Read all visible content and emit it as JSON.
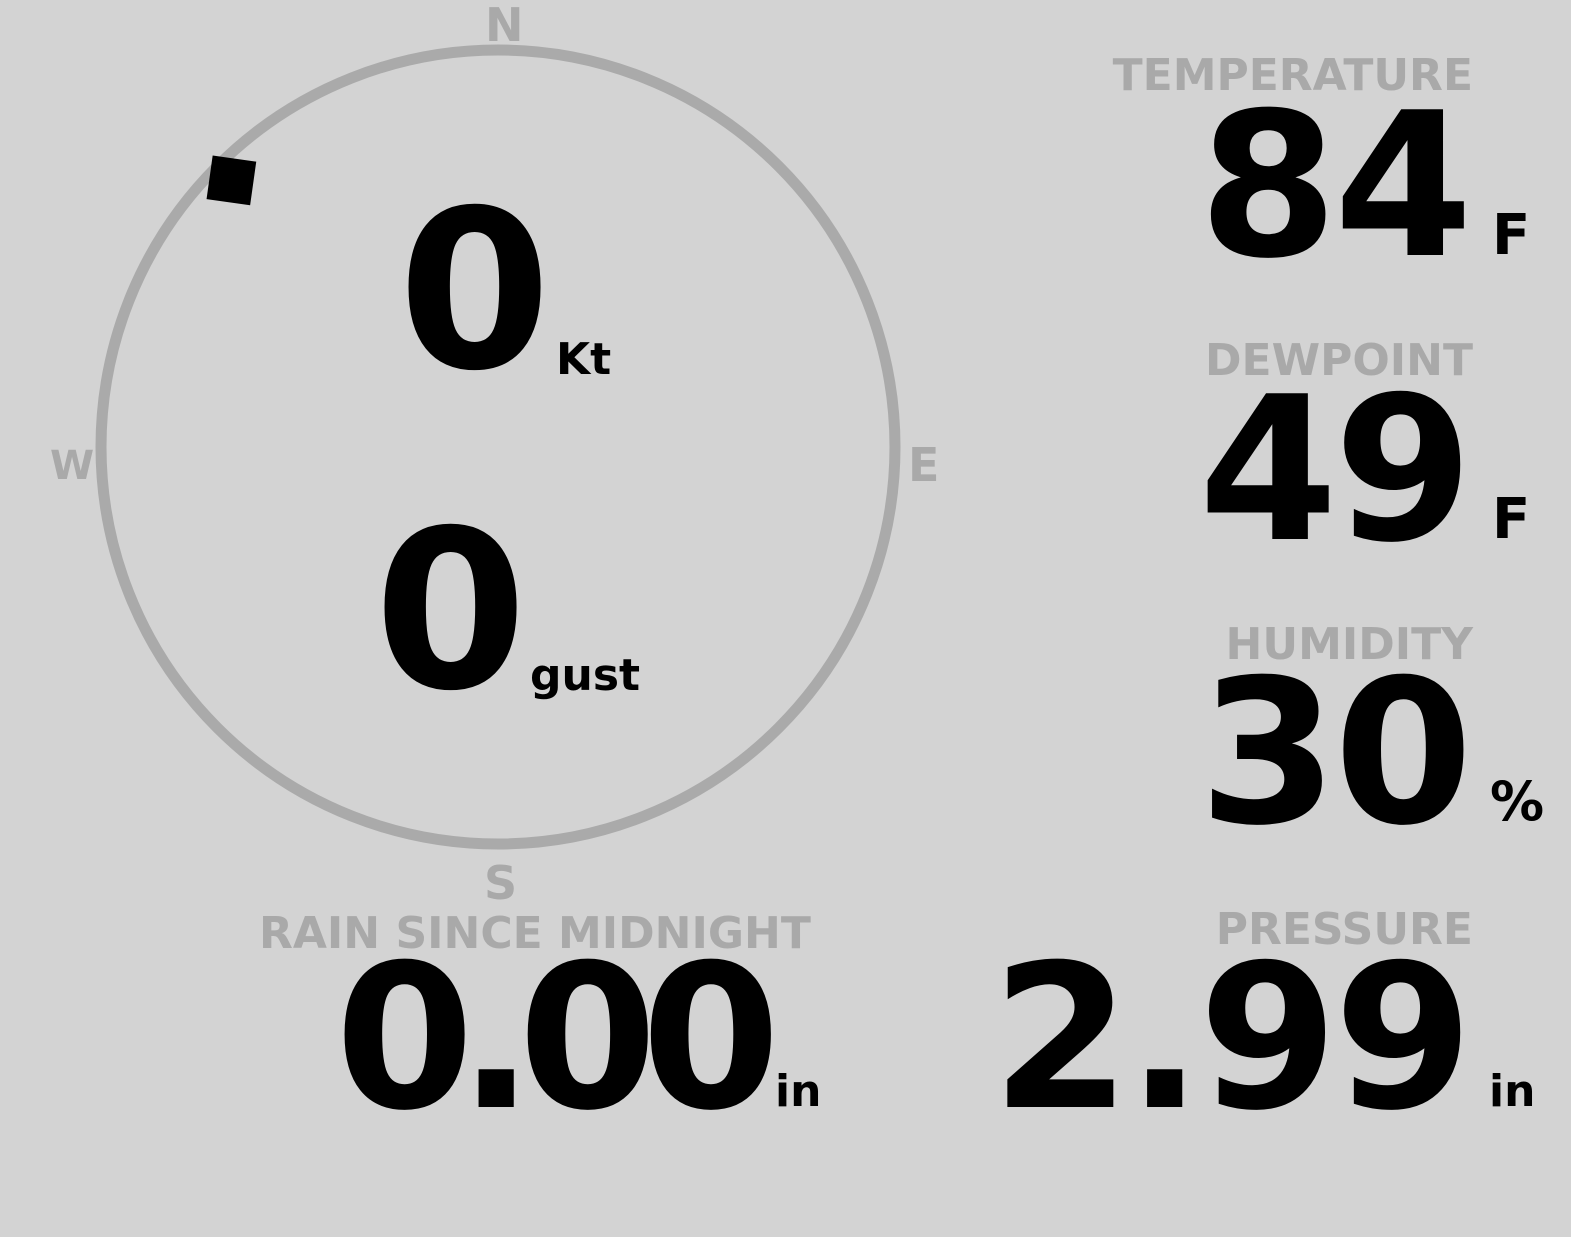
{
  "compass": {
    "north": "N",
    "south": "S",
    "east": "E",
    "west": "W",
    "wind_direction_deg": 315,
    "ring_color": "#aaaaaa",
    "indicator_color": "#000000"
  },
  "wind": {
    "speed": "0",
    "speed_unit": "Kt",
    "gust": "0",
    "gust_unit": "gust"
  },
  "rain": {
    "label": "RAIN SINCE MIDNIGHT",
    "value": "0.00",
    "unit": "in"
  },
  "temperature": {
    "label": "TEMPERATURE",
    "value": "84",
    "unit": "F"
  },
  "dewpoint": {
    "label": "DEWPOINT",
    "value": "49",
    "unit": "F"
  },
  "humidity": {
    "label": "HUMIDITY",
    "value": "30",
    "unit": "%"
  },
  "pressure": {
    "label": "PRESSURE",
    "value": "2.99",
    "unit": "in"
  },
  "colors": {
    "background": "#d3d3d3",
    "label": "#a9a9a9",
    "value": "#000000"
  }
}
